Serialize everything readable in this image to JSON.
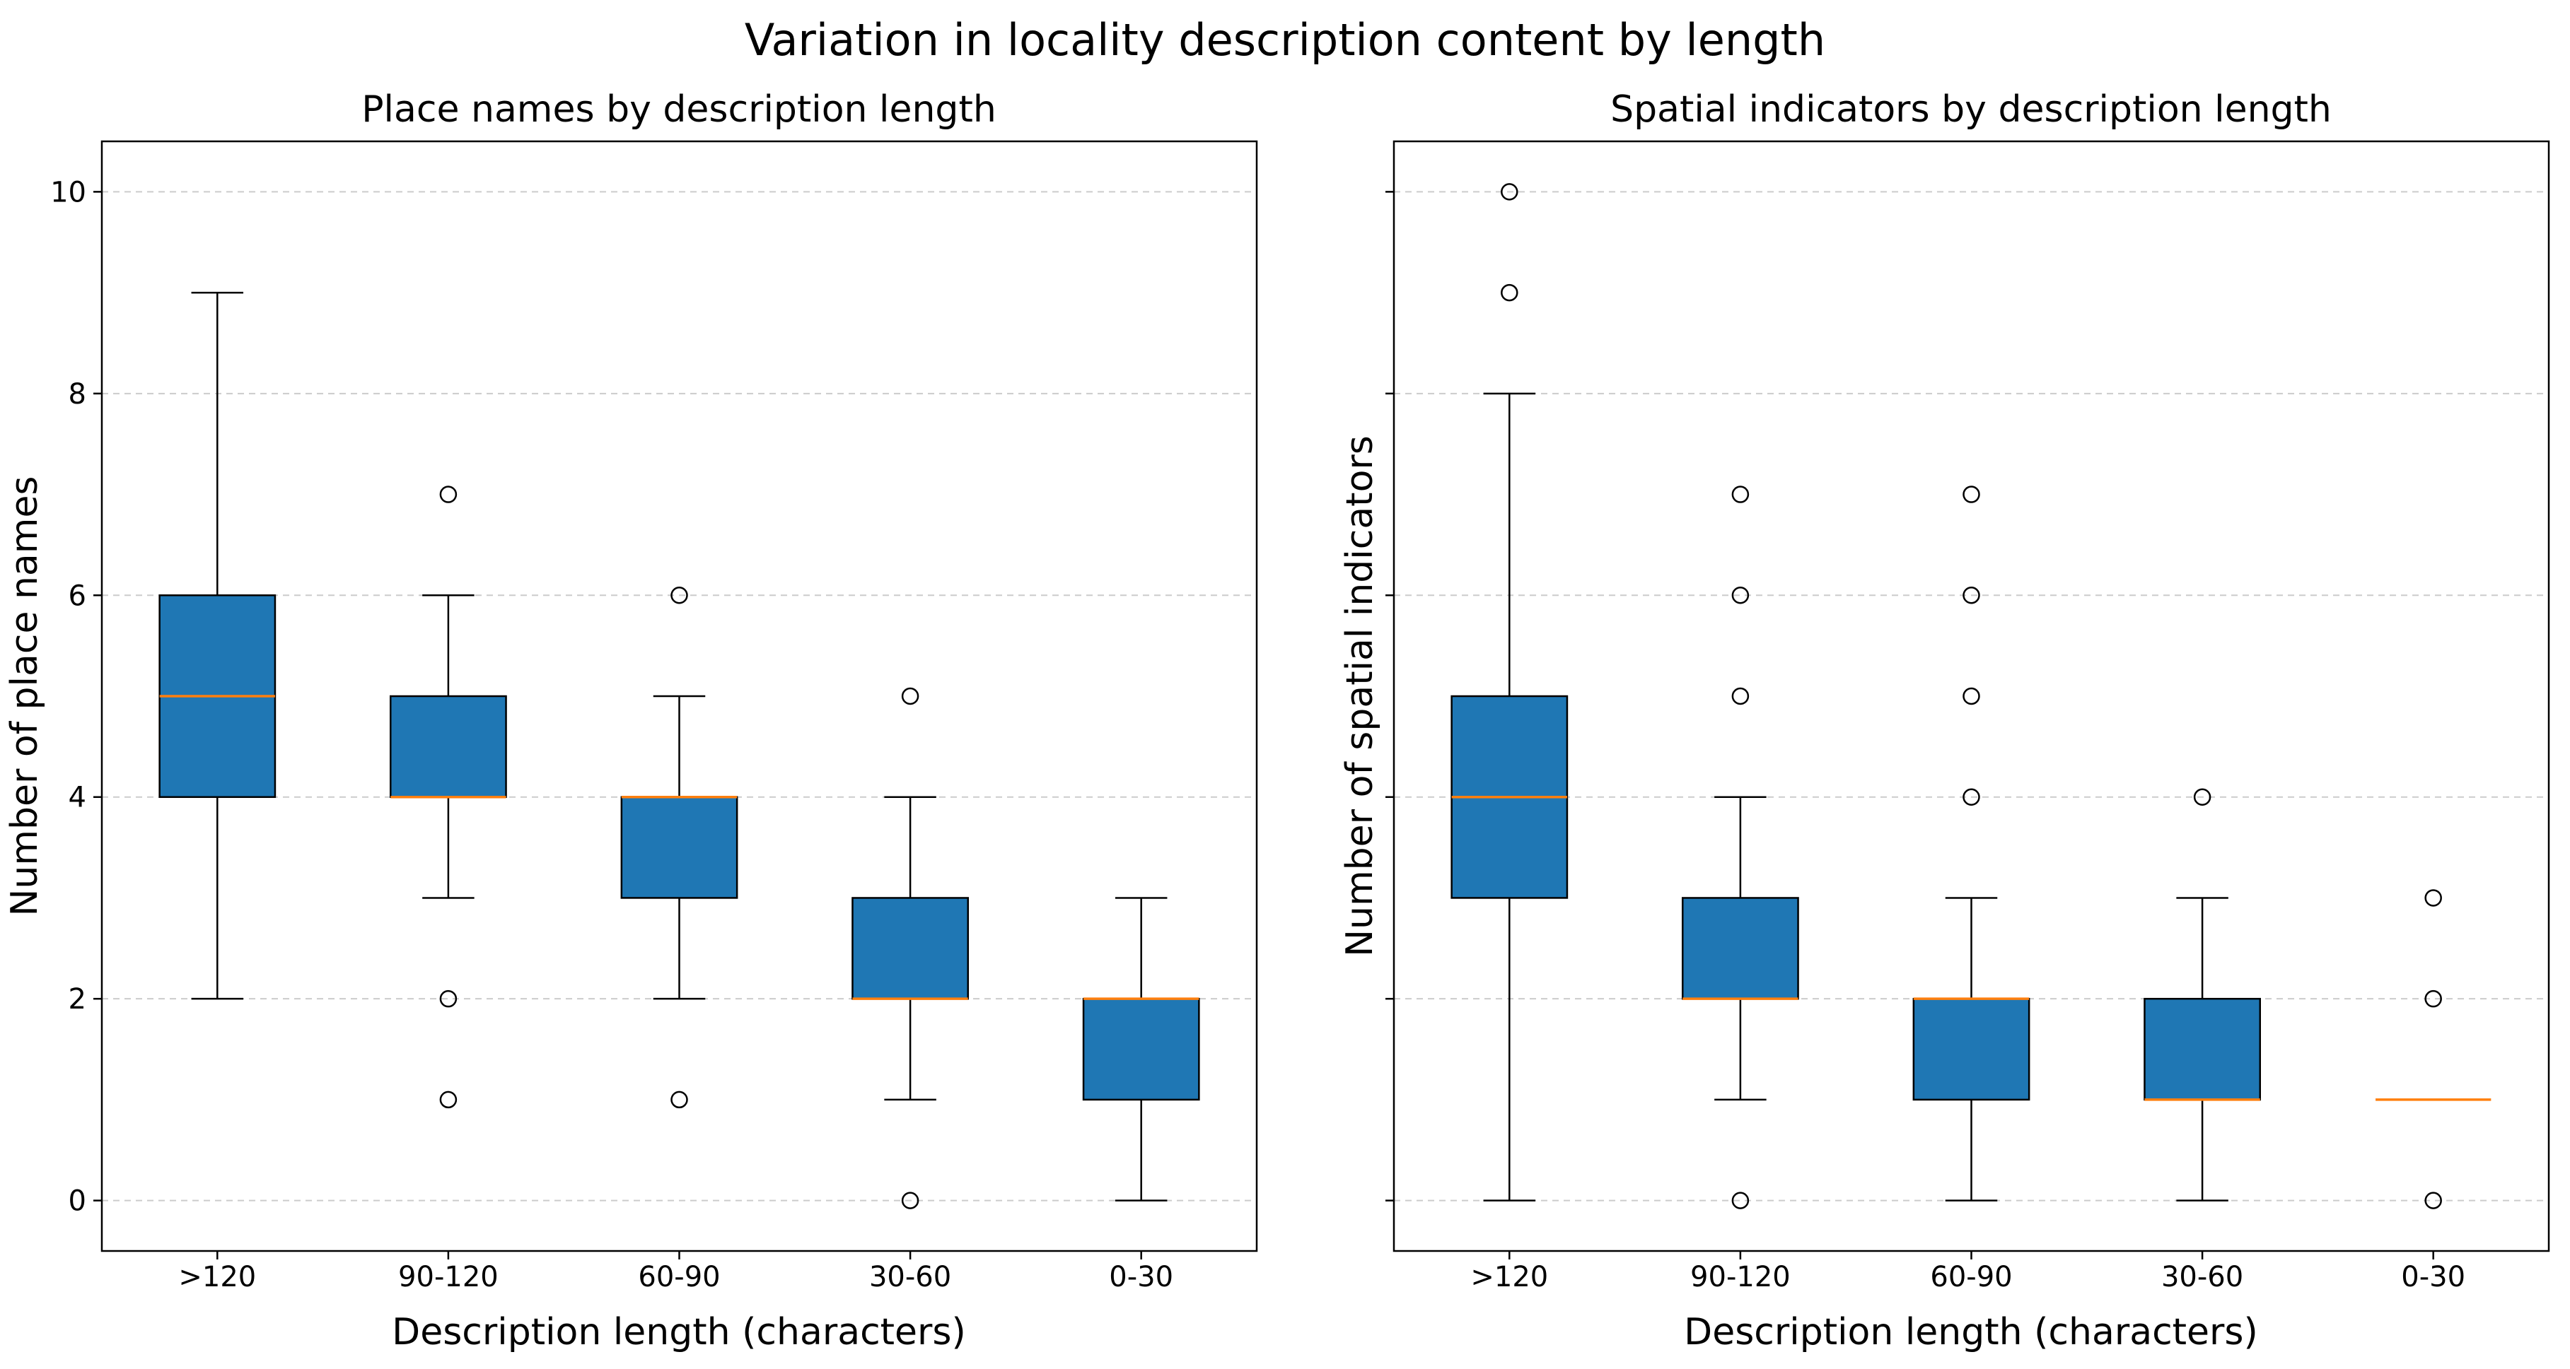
{
  "figure": {
    "suptitle": "Variation in locality description content by length",
    "background": "#ffffff",
    "box_fill": "#1f77b4",
    "box_edge": "#000000",
    "median_color": "#ff7f0e",
    "whisker_color": "#000000",
    "outlier_color": "#000000",
    "grid_color": "#cccccc",
    "spine_color": "#000000"
  },
  "chart_data": [
    {
      "type": "boxplot",
      "title": "Place names by description length",
      "xlabel": "Description length (characters)",
      "ylabel": "Number of place names",
      "categories": [
        ">120",
        "90-120",
        "60-90",
        "30-60",
        "0-30"
      ],
      "ylim": [
        -0.5,
        10.5
      ],
      "yticks": [
        0,
        2,
        4,
        6,
        8,
        10
      ],
      "show_ytick_labels": true,
      "grid": "dashed-horizontal",
      "boxes": [
        {
          "category": ">120",
          "whisker_low": 2,
          "q1": 4,
          "median": 5,
          "q3": 6,
          "whisker_high": 9,
          "outliers": []
        },
        {
          "category": "90-120",
          "whisker_low": 3,
          "q1": 4,
          "median": 4,
          "q3": 5,
          "whisker_high": 6,
          "outliers": [
            7,
            2,
            1
          ]
        },
        {
          "category": "60-90",
          "whisker_low": 2,
          "q1": 3,
          "median": 4,
          "q3": 4,
          "whisker_high": 5,
          "outliers": [
            6,
            1
          ]
        },
        {
          "category": "30-60",
          "whisker_low": 1,
          "q1": 2,
          "median": 2,
          "q3": 3,
          "whisker_high": 4,
          "outliers": [
            5,
            0
          ]
        },
        {
          "category": "0-30",
          "whisker_low": 0,
          "q1": 1,
          "median": 2,
          "q3": 2,
          "whisker_high": 3,
          "outliers": []
        }
      ]
    },
    {
      "type": "boxplot",
      "title": "Spatial indicators by description length",
      "xlabel": "Description length (characters)",
      "ylabel": "Number of spatial indicators",
      "categories": [
        ">120",
        "90-120",
        "60-90",
        "30-60",
        "0-30"
      ],
      "ylim": [
        -0.5,
        10.5
      ],
      "yticks": [
        0,
        2,
        4,
        6,
        8,
        10
      ],
      "show_ytick_labels": false,
      "grid": "dashed-horizontal",
      "boxes": [
        {
          "category": ">120",
          "whisker_low": 0,
          "q1": 3,
          "median": 4,
          "q3": 5,
          "whisker_high": 8,
          "outliers": [
            9,
            10
          ]
        },
        {
          "category": "90-120",
          "whisker_low": 1,
          "q1": 2,
          "median": 2,
          "q3": 3,
          "whisker_high": 4,
          "outliers": [
            5,
            6,
            7,
            0
          ]
        },
        {
          "category": "60-90",
          "whisker_low": 0,
          "q1": 1,
          "median": 2,
          "q3": 2,
          "whisker_high": 3,
          "outliers": [
            4,
            5,
            6,
            7
          ]
        },
        {
          "category": "30-60",
          "whisker_low": 0,
          "q1": 1,
          "median": 1,
          "q3": 2,
          "whisker_high": 3,
          "outliers": [
            4
          ]
        },
        {
          "category": "0-30",
          "whisker_low": 1,
          "q1": 1,
          "median": 1,
          "q3": 1,
          "whisker_high": 1,
          "outliers": [
            0,
            2,
            3
          ]
        }
      ]
    }
  ]
}
